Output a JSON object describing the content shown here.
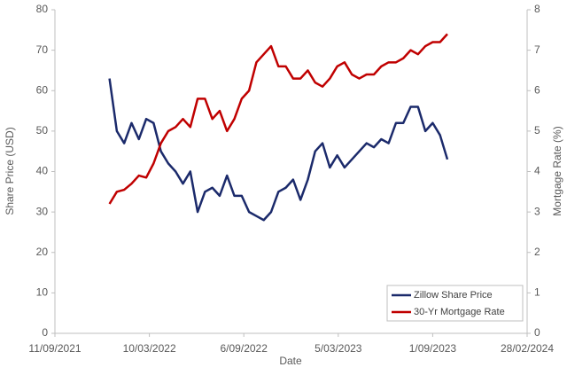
{
  "chart_data": {
    "type": "line",
    "xlabel": "Date",
    "ylabel": "Share Price (USD)",
    "y2label": "Mortgage Rate (%)",
    "x": [
      "2021-12-24",
      "2022-01-07",
      "2022-01-21",
      "2022-02-04",
      "2022-02-18",
      "2022-03-04",
      "2022-03-18",
      "2022-04-01",
      "2022-04-15",
      "2022-04-29",
      "2022-05-13",
      "2022-05-27",
      "2022-06-10",
      "2022-06-24",
      "2022-07-08",
      "2022-07-22",
      "2022-08-05",
      "2022-08-19",
      "2022-09-02",
      "2022-09-16",
      "2022-09-30",
      "2022-10-14",
      "2022-10-28",
      "2022-11-11",
      "2022-11-25",
      "2022-12-09",
      "2022-12-23",
      "2023-01-06",
      "2023-01-20",
      "2023-02-03",
      "2023-02-17",
      "2023-03-03",
      "2023-03-17",
      "2023-03-31",
      "2023-04-14",
      "2023-04-28",
      "2023-05-12",
      "2023-05-26",
      "2023-06-09",
      "2023-06-23",
      "2023-07-07",
      "2023-07-21",
      "2023-08-04",
      "2023-08-18",
      "2023-09-01",
      "2023-09-15",
      "2023-09-29"
    ],
    "series": [
      {
        "name": "Zillow Share Price",
        "color": "#1b2a6b",
        "values": [
          63,
          50,
          47,
          52,
          48,
          53,
          52,
          45,
          42,
          40,
          37,
          40,
          30,
          35,
          36,
          34,
          39,
          34,
          34,
          30,
          29,
          28,
          30,
          35,
          36,
          38,
          33,
          38,
          45,
          47,
          41,
          44,
          41,
          43,
          45,
          47,
          46,
          48,
          47,
          52,
          52,
          56,
          56,
          50,
          52,
          49,
          43
        ]
      },
      {
        "name": "30-Yr Mortgage Rate",
        "color": "#c00000",
        "axis": "y2",
        "values": [
          3.2,
          3.5,
          3.55,
          3.7,
          3.9,
          3.85,
          4.2,
          4.7,
          5.0,
          5.1,
          5.3,
          5.1,
          5.8,
          5.8,
          5.3,
          5.5,
          5.0,
          5.3,
          5.8,
          6.0,
          6.7,
          6.9,
          7.1,
          6.6,
          6.6,
          6.3,
          6.3,
          6.5,
          6.2,
          6.1,
          6.3,
          6.6,
          6.7,
          6.4,
          6.3,
          6.4,
          6.4,
          6.6,
          6.7,
          6.7,
          6.8,
          7.0,
          6.9,
          7.1,
          7.2,
          7.2,
          7.4
        ]
      }
    ],
    "xlim": [
      "2021-09-11",
      "2024-02-28"
    ],
    "xticks": [
      {
        "value": "2021-09-11",
        "label": "11/09/2021"
      },
      {
        "value": "2022-03-10",
        "label": "10/03/2022"
      },
      {
        "value": "2022-09-06",
        "label": "6/09/2022"
      },
      {
        "value": "2023-03-05",
        "label": "5/03/2023"
      },
      {
        "value": "2023-09-01",
        "label": "1/09/2023"
      },
      {
        "value": "2024-02-28",
        "label": "28/02/2024"
      }
    ],
    "ylim": [
      0,
      80
    ],
    "yticks": [
      0,
      10,
      20,
      30,
      40,
      50,
      60,
      70,
      80
    ],
    "y2lim": [
      0,
      8
    ],
    "y2ticks": [
      0,
      1,
      2,
      3,
      4,
      5,
      6,
      7,
      8
    ],
    "legend": "lower right"
  }
}
